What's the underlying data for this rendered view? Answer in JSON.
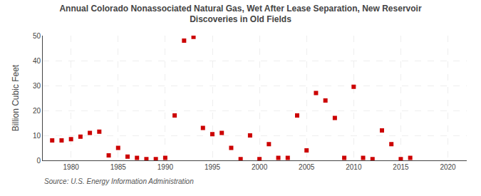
{
  "chart_data": {
    "type": "scatter",
    "title": "Annual Colorado Nonassociated Natural Gas, Wet After Lease Separation, New Reservoir\nDiscoveries in Old Fields",
    "ylabel": "Billion Cubic Feet",
    "annotations": [
      "Source: U.S. Energy Information Administration"
    ],
    "x": [
      1978,
      1979,
      1980,
      1981,
      1982,
      1983,
      1984,
      1985,
      1986,
      1987,
      1988,
      1989,
      1990,
      1991,
      1992,
      1993,
      1994,
      1995,
      1996,
      1997,
      1998,
      1999,
      2000,
      2001,
      2002,
      2003,
      2004,
      2005,
      2006,
      2007,
      2008,
      2009,
      2010,
      2011,
      2012,
      2013,
      2014,
      2015,
      2016
    ],
    "values": [
      8.0,
      8.0,
      8.5,
      9.5,
      11.0,
      11.5,
      2.0,
      5.0,
      1.5,
      1.0,
      0.5,
      0.5,
      1.0,
      18.0,
      48.0,
      49.5,
      13.0,
      10.5,
      11.0,
      5.0,
      0.5,
      10.0,
      0.5,
      6.5,
      1.0,
      1.0,
      18.0,
      4.0,
      27.0,
      24.0,
      17.0,
      1.0,
      29.5,
      1.0,
      0.5,
      12.0,
      6.5,
      0.5,
      1.0
    ],
    "color": "#cc0000",
    "marker": "square",
    "xlim": [
      1977,
      2022
    ],
    "ylim": [
      0,
      50
    ],
    "xticks": [
      1980,
      1985,
      1990,
      1995,
      2000,
      2005,
      2010,
      2015,
      2020
    ],
    "yticks": [
      0,
      10,
      20,
      30,
      40,
      50
    ],
    "grid": true
  }
}
